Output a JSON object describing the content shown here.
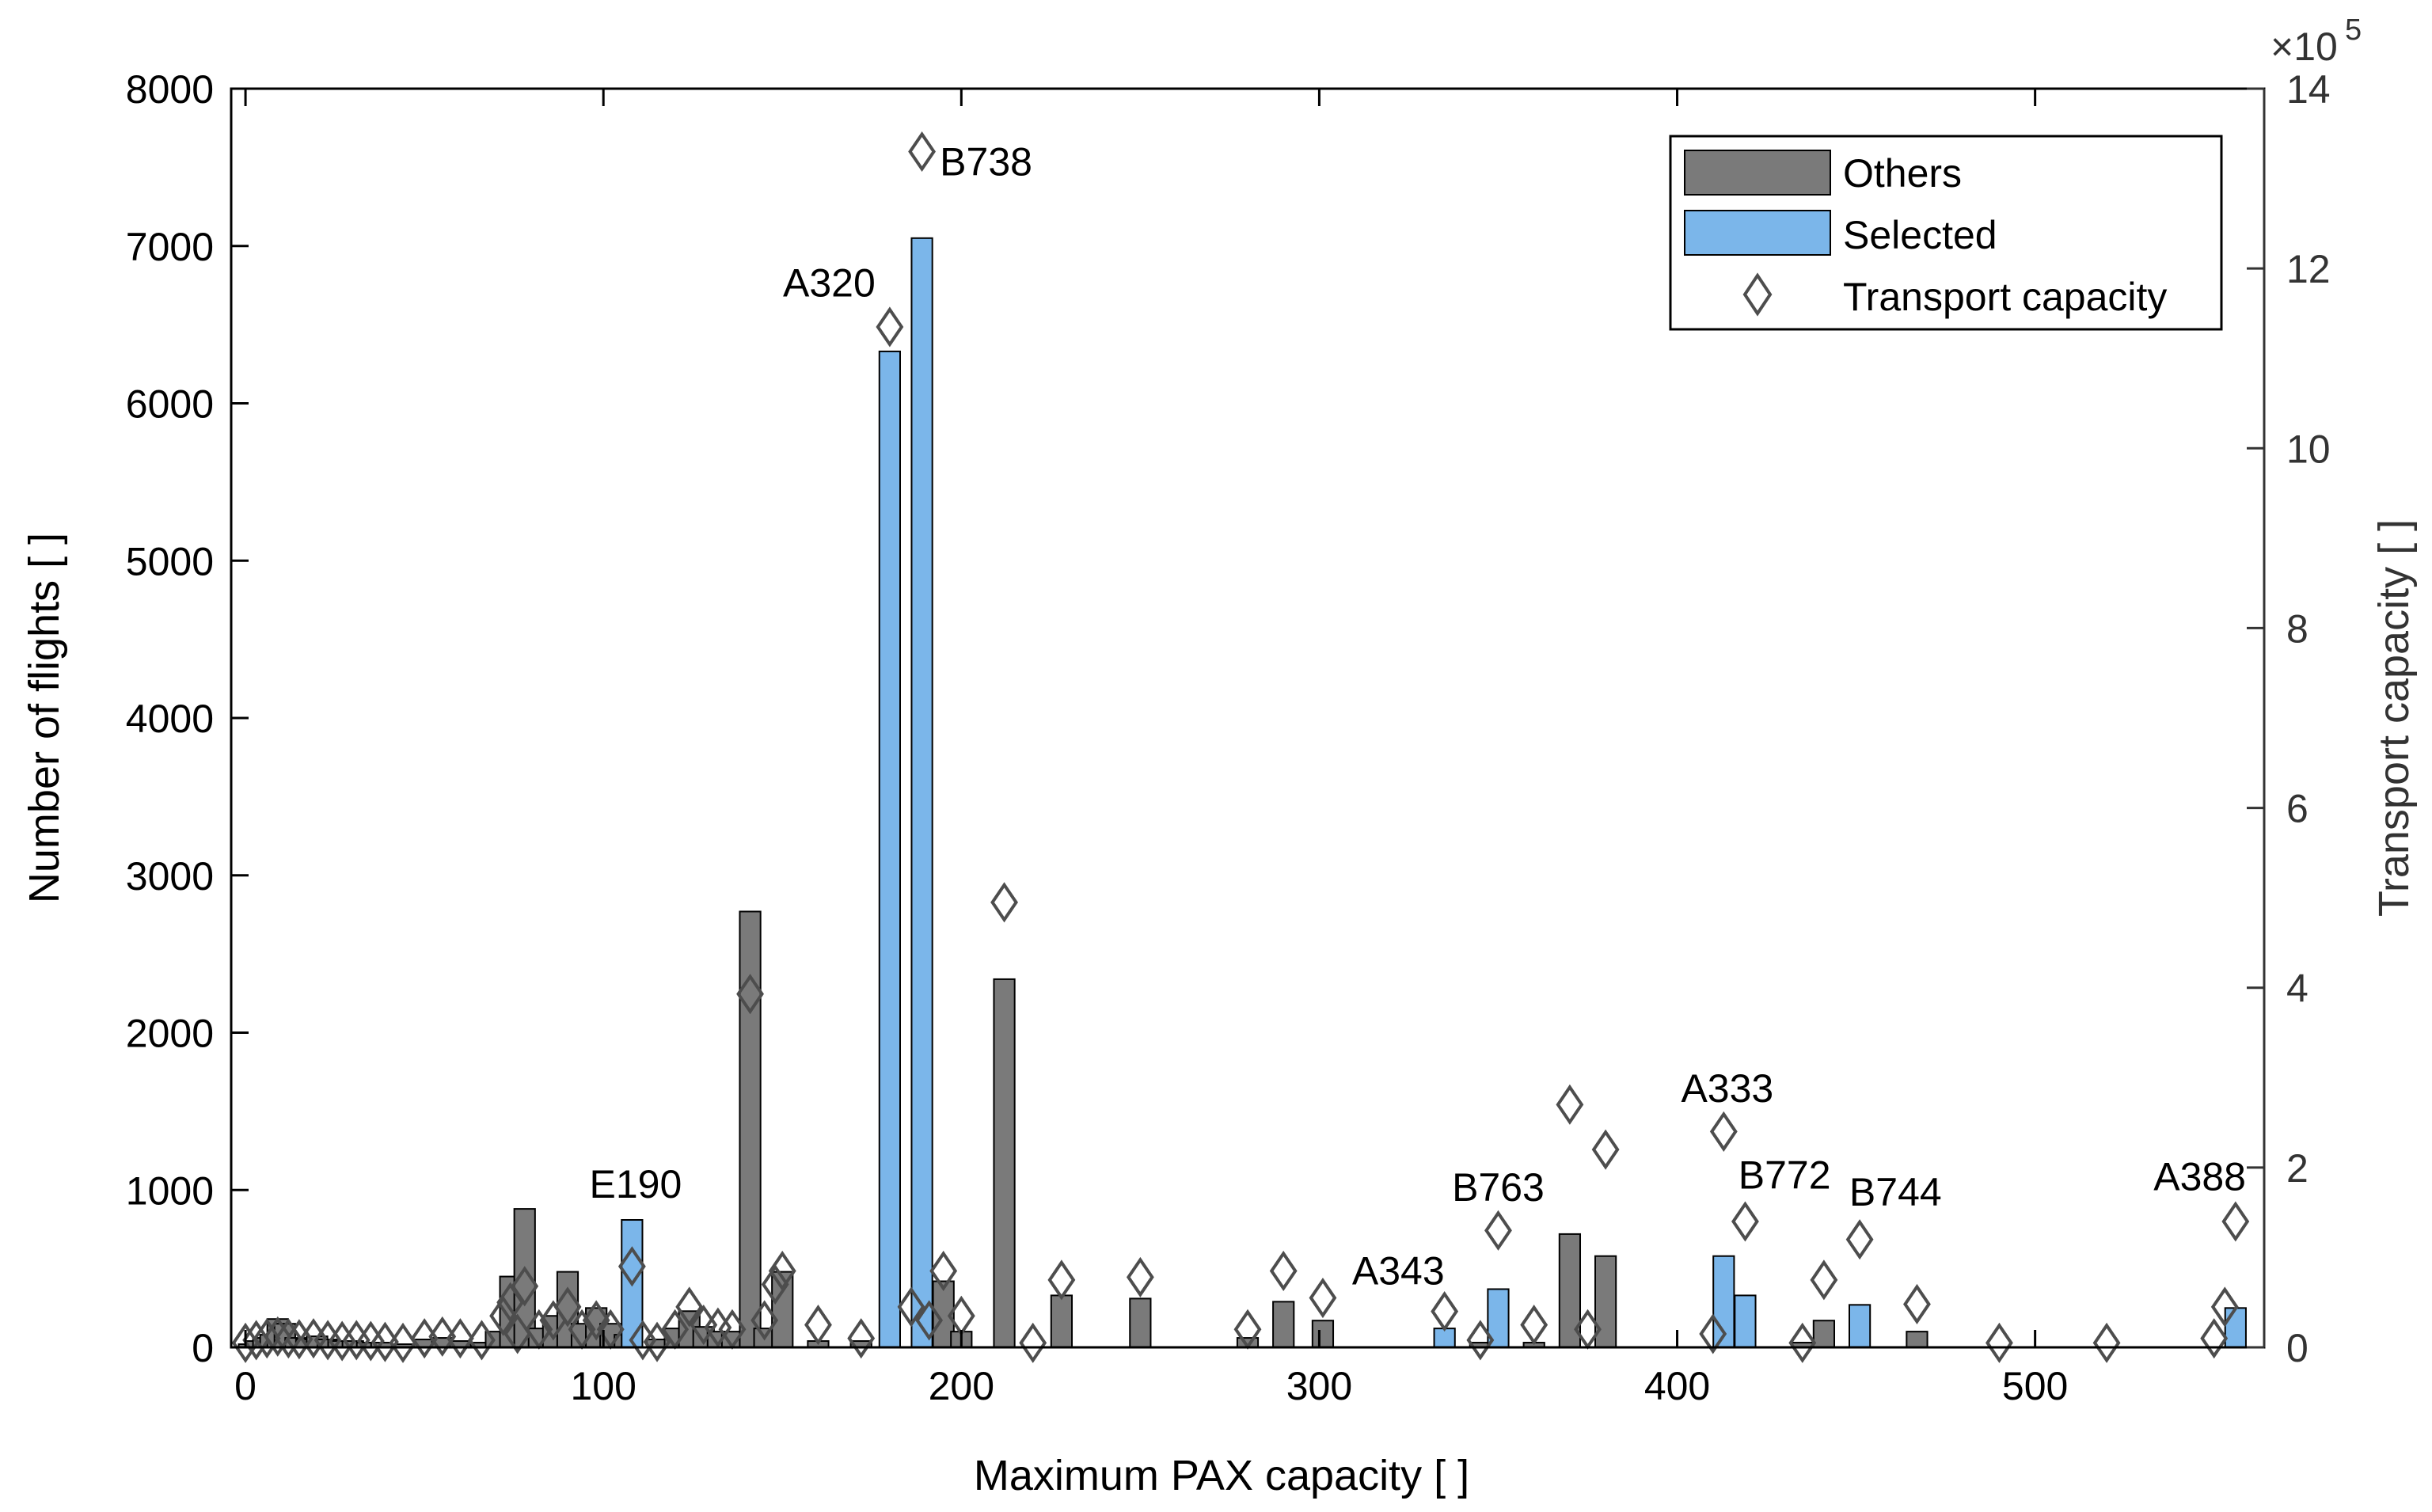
{
  "chart_data": {
    "type": "bar",
    "xlabel": "Maximum PAX capacity [ ]",
    "ylabel": "Number of flights [ ]",
    "y2label": "Transport capacity [ ]",
    "y2_exponent_base": "×10",
    "y2_exponent_power": "5",
    "xlim": [
      -4,
      564
    ],
    "ylim": [
      0,
      8000
    ],
    "y2lim": [
      0,
      14
    ],
    "xticks": [
      0,
      100,
      200,
      300,
      400,
      500
    ],
    "yticks": [
      0,
      1000,
      2000,
      3000,
      4000,
      5000,
      6000,
      7000,
      8000
    ],
    "y2ticks": [
      0,
      2,
      4,
      6,
      8,
      10,
      12,
      14
    ],
    "legend": {
      "placement": "top-right",
      "others": "Others",
      "selected": "Selected",
      "transport": "Transport capacity"
    },
    "colors": {
      "others": "#7a7a7a",
      "selected": "#7bb6ea",
      "marker": "#4d4d4d",
      "axis": "#000000",
      "axis2": "#333333"
    },
    "bar_width": 5.8,
    "others_bars": [
      {
        "x": 1,
        "y": 20
      },
      {
        "x": 3,
        "y": 40
      },
      {
        "x": 5,
        "y": 60
      },
      {
        "x": 7,
        "y": 80
      },
      {
        "x": 9,
        "y": 180
      },
      {
        "x": 11,
        "y": 150
      },
      {
        "x": 14,
        "y": 60
      },
      {
        "x": 17,
        "y": 50
      },
      {
        "x": 20,
        "y": 70
      },
      {
        "x": 23,
        "y": 50
      },
      {
        "x": 26,
        "y": 40
      },
      {
        "x": 30,
        "y": 40
      },
      {
        "x": 34,
        "y": 30
      },
      {
        "x": 38,
        "y": 30
      },
      {
        "x": 44,
        "y": 20
      },
      {
        "x": 50,
        "y": 50
      },
      {
        "x": 55,
        "y": 60
      },
      {
        "x": 60,
        "y": 40
      },
      {
        "x": 66,
        "y": 30
      },
      {
        "x": 70,
        "y": 100
      },
      {
        "x": 74,
        "y": 450
      },
      {
        "x": 78,
        "y": 880
      },
      {
        "x": 82,
        "y": 120
      },
      {
        "x": 86,
        "y": 200
      },
      {
        "x": 90,
        "y": 480
      },
      {
        "x": 94,
        "y": 150
      },
      {
        "x": 98,
        "y": 250
      },
      {
        "x": 102,
        "y": 150
      },
      {
        "x": 106,
        "y": 80
      },
      {
        "x": 115,
        "y": 50
      },
      {
        "x": 120,
        "y": 120
      },
      {
        "x": 124,
        "y": 230
      },
      {
        "x": 128,
        "y": 130
      },
      {
        "x": 132,
        "y": 100
      },
      {
        "x": 136,
        "y": 100
      },
      {
        "x": 141,
        "y": 2770
      },
      {
        "x": 145,
        "y": 120
      },
      {
        "x": 150,
        "y": 480
      },
      {
        "x": 160,
        "y": 40
      },
      {
        "x": 172,
        "y": 40
      },
      {
        "x": 195,
        "y": 420
      },
      {
        "x": 200,
        "y": 100
      },
      {
        "x": 212,
        "y": 2340
      },
      {
        "x": 228,
        "y": 330
      },
      {
        "x": 250,
        "y": 310
      },
      {
        "x": 280,
        "y": 60
      },
      {
        "x": 290,
        "y": 290
      },
      {
        "x": 301,
        "y": 170
      },
      {
        "x": 345,
        "y": 30
      },
      {
        "x": 360,
        "y": 30
      },
      {
        "x": 370,
        "y": 720
      },
      {
        "x": 380,
        "y": 580
      },
      {
        "x": 435,
        "y": 30
      },
      {
        "x": 441,
        "y": 170
      },
      {
        "x": 467,
        "y": 100
      }
    ],
    "selected_bars": [
      {
        "x": 108,
        "y": 810
      },
      {
        "x": 180,
        "y": 6330
      },
      {
        "x": 189,
        "y": 7050
      },
      {
        "x": 335,
        "y": 120
      },
      {
        "x": 350,
        "y": 370
      },
      {
        "x": 413,
        "y": 580
      },
      {
        "x": 419,
        "y": 330
      },
      {
        "x": 451,
        "y": 270
      },
      {
        "x": 556,
        "y": 250
      }
    ],
    "transport_capacity_1e5": [
      {
        "x": 0,
        "y": 0.05
      },
      {
        "x": 3,
        "y": 0.08
      },
      {
        "x": 6,
        "y": 0.1
      },
      {
        "x": 9,
        "y": 0.12
      },
      {
        "x": 12,
        "y": 0.1
      },
      {
        "x": 15,
        "y": 0.09
      },
      {
        "x": 19,
        "y": 0.1
      },
      {
        "x": 23,
        "y": 0.08
      },
      {
        "x": 27,
        "y": 0.07
      },
      {
        "x": 31,
        "y": 0.08
      },
      {
        "x": 35,
        "y": 0.07
      },
      {
        "x": 39,
        "y": 0.06
      },
      {
        "x": 44,
        "y": 0.05
      },
      {
        "x": 50,
        "y": 0.1
      },
      {
        "x": 55,
        "y": 0.12
      },
      {
        "x": 60,
        "y": 0.1
      },
      {
        "x": 66,
        "y": 0.08
      },
      {
        "x": 72,
        "y": 0.35
      },
      {
        "x": 74,
        "y": 0.5
      },
      {
        "x": 76,
        "y": 0.15
      },
      {
        "x": 78,
        "y": 0.68
      },
      {
        "x": 82,
        "y": 0.2
      },
      {
        "x": 86,
        "y": 0.3
      },
      {
        "x": 90,
        "y": 0.45
      },
      {
        "x": 94,
        "y": 0.2
      },
      {
        "x": 98,
        "y": 0.3
      },
      {
        "x": 102,
        "y": 0.2
      },
      {
        "x": 108,
        "y": 0.9
      },
      {
        "x": 111,
        "y": 0.08
      },
      {
        "x": 115,
        "y": 0.06
      },
      {
        "x": 120,
        "y": 0.2
      },
      {
        "x": 124,
        "y": 0.45
      },
      {
        "x": 128,
        "y": 0.25
      },
      {
        "x": 132,
        "y": 0.22
      },
      {
        "x": 136,
        "y": 0.2
      },
      {
        "x": 141,
        "y": 3.93
      },
      {
        "x": 145,
        "y": 0.3
      },
      {
        "x": 148,
        "y": 0.7
      },
      {
        "x": 150,
        "y": 0.85
      },
      {
        "x": 160,
        "y": 0.25
      },
      {
        "x": 172,
        "y": 0.1
      },
      {
        "x": 180,
        "y": 11.35
      },
      {
        "x": 186,
        "y": 0.45
      },
      {
        "x": 189,
        "y": 13.3
      },
      {
        "x": 191,
        "y": 0.3
      },
      {
        "x": 195,
        "y": 0.85
      },
      {
        "x": 200,
        "y": 0.35
      },
      {
        "x": 212,
        "y": 4.95
      },
      {
        "x": 220,
        "y": 0.05
      },
      {
        "x": 228,
        "y": 0.75
      },
      {
        "x": 250,
        "y": 0.78
      },
      {
        "x": 280,
        "y": 0.2
      },
      {
        "x": 290,
        "y": 0.85
      },
      {
        "x": 301,
        "y": 0.55
      },
      {
        "x": 335,
        "y": 0.4
      },
      {
        "x": 345,
        "y": 0.08
      },
      {
        "x": 350,
        "y": 1.3
      },
      {
        "x": 360,
        "y": 0.25
      },
      {
        "x": 370,
        "y": 2.7
      },
      {
        "x": 380,
        "y": 2.2
      },
      {
        "x": 375,
        "y": 0.2
      },
      {
        "x": 410,
        "y": 0.15
      },
      {
        "x": 413,
        "y": 2.4
      },
      {
        "x": 419,
        "y": 1.4
      },
      {
        "x": 435,
        "y": 0.05
      },
      {
        "x": 441,
        "y": 0.75
      },
      {
        "x": 451,
        "y": 1.2
      },
      {
        "x": 467,
        "y": 0.48
      },
      {
        "x": 490,
        "y": 0.05
      },
      {
        "x": 520,
        "y": 0.05
      },
      {
        "x": 550,
        "y": 0.1
      },
      {
        "x": 553,
        "y": 0.45
      },
      {
        "x": 556,
        "y": 1.4
      }
    ],
    "annotations": [
      {
        "text": "B738",
        "x": 194,
        "y": 7450,
        "anchor": "start"
      },
      {
        "text": "A320",
        "x": 176,
        "y": 6680,
        "anchor": "end"
      },
      {
        "text": "E190",
        "x": 109,
        "y": 950,
        "anchor": "middle"
      },
      {
        "text": "A343",
        "x": 335,
        "y": 400,
        "anchor": "end"
      },
      {
        "text": "B763",
        "x": 350,
        "y": 930,
        "anchor": "middle"
      },
      {
        "text": "A333",
        "x": 414,
        "y": 1560,
        "anchor": "middle"
      },
      {
        "text": "B772",
        "x": 430,
        "y": 1010,
        "anchor": "middle"
      },
      {
        "text": "B744",
        "x": 461,
        "y": 900,
        "anchor": "middle"
      },
      {
        "text": "A388",
        "x": 546,
        "y": 1000,
        "anchor": "middle"
      }
    ]
  }
}
